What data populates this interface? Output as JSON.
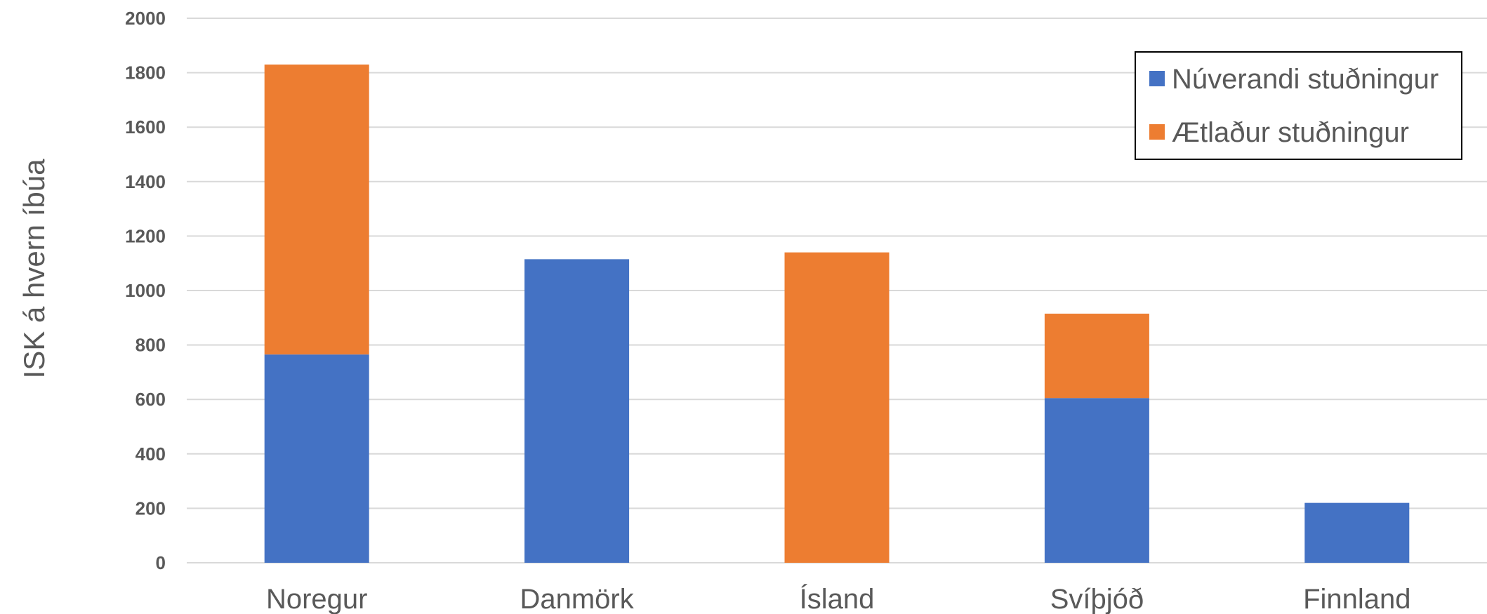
{
  "chart_data": {
    "type": "bar",
    "stacked": true,
    "title": "",
    "xlabel": "",
    "ylabel": "ISK á hvern íbúa",
    "ylim": [
      0,
      2000
    ],
    "yticks": [
      0,
      200,
      400,
      600,
      800,
      1000,
      1200,
      1400,
      1600,
      1800,
      2000
    ],
    "grid": true,
    "legend_position": "top-right",
    "categories": [
      "Noregur",
      "Danmörk",
      "Ísland",
      "Svíþjóð",
      "Finnland"
    ],
    "series": [
      {
        "name": "Núverandi stuðningur",
        "color": "#4472C4",
        "values": [
          765,
          1115,
          0,
          605,
          220
        ]
      },
      {
        "name": "Ætlaður stuðningur",
        "color": "#ED7D31",
        "values": [
          1065,
          0,
          1140,
          310,
          0
        ]
      }
    ]
  }
}
